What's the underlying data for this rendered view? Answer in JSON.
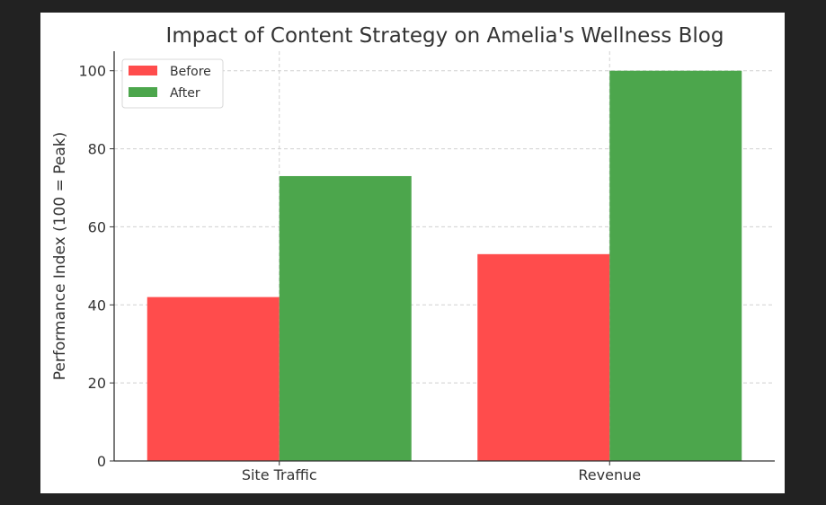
{
  "chart_data": {
    "type": "bar",
    "title": "Impact of Content Strategy on Amelia's Wellness Blog",
    "xlabel": "",
    "ylabel": "Performance Index (100 = Peak)",
    "categories": [
      "Site Traffic",
      "Revenue"
    ],
    "series": [
      {
        "name": "Before",
        "values": [
          42,
          53
        ],
        "color": "#ff4c4c"
      },
      {
        "name": "After",
        "values": [
          73,
          100
        ],
        "color": "#4ca64c"
      }
    ],
    "ylim": [
      0,
      105
    ],
    "yticks": [
      0,
      20,
      40,
      60,
      80,
      100
    ],
    "grid": true,
    "legend": "top-left"
  }
}
